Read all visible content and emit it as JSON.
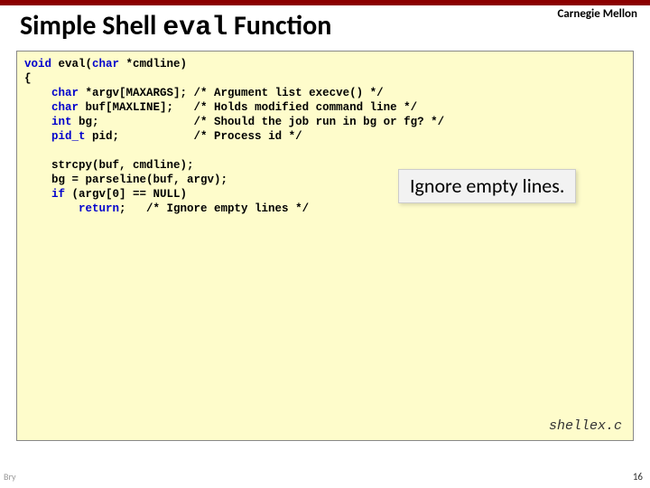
{
  "header": {
    "university": "Carnegie Mellon",
    "bar_color": "#8b0000"
  },
  "title": {
    "pre": "Simple Shell ",
    "mono": "eval",
    "post": " Function",
    "fontsize": 30
  },
  "code_box": {
    "background_color": "#fefccb",
    "border_color": "#888888",
    "font_family": "Courier New",
    "fontsize": 12.5,
    "keyword_color": "#0000cc",
    "lines": [
      {
        "t": "void",
        "r": " eval(",
        "t2": "char",
        "r2": " *cmdline)"
      },
      {
        "r": "{"
      },
      {
        "sp": "    ",
        "t": "char",
        "r": " *argv[MAXARGS]; /* Argument list execve() */"
      },
      {
        "sp": "    ",
        "t": "char",
        "r": " buf[MAXLINE];   /* Holds modified command line */"
      },
      {
        "sp": "    ",
        "t": "int",
        "r": " bg;              /* Should the job run in bg or fg? */"
      },
      {
        "sp": "    ",
        "t": "pid_t",
        "r": " pid;           /* Process id */"
      },
      {
        "r": ""
      },
      {
        "sp": "    ",
        "r": "strcpy(buf, cmdline);"
      },
      {
        "sp": "    ",
        "r": "bg = parseline(buf, argv);"
      },
      {
        "sp": "    ",
        "t": "if",
        "r": " (argv[0] == NULL)"
      },
      {
        "sp": "        ",
        "t": "return",
        "r": ";   /* Ignore empty lines */"
      }
    ]
  },
  "callout": {
    "text": "Ignore empty lines.",
    "background_color": "#f2f2f2",
    "fontsize": 22
  },
  "filename": "shellex.c",
  "page_number": "16",
  "footer_left": "Bry"
}
